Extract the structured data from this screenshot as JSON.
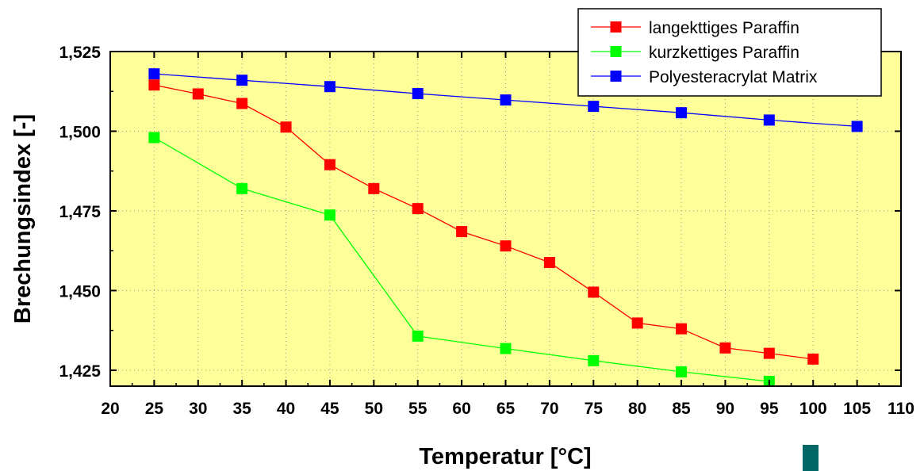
{
  "chart_data": {
    "type": "line",
    "xlabel": "Temperatur [°C]",
    "ylabel": "Brechungsindex [-]",
    "xlim": [
      20,
      110
    ],
    "ylim": [
      1.42,
      1.525
    ],
    "x_ticks": [
      20,
      25,
      30,
      35,
      40,
      45,
      50,
      55,
      60,
      65,
      70,
      75,
      80,
      85,
      90,
      95,
      100,
      105,
      110
    ],
    "x_tick_labels": [
      "20",
      "25",
      "30",
      "35",
      "40",
      "45",
      "50",
      "55",
      "60",
      "65",
      "70",
      "75",
      "80",
      "85",
      "90",
      "95",
      "100",
      "105",
      "110"
    ],
    "y_ticks": [
      1.425,
      1.45,
      1.475,
      1.5,
      1.525
    ],
    "y_tick_labels": [
      "1,425",
      "1,450",
      "1,475",
      "1,500",
      "1,525"
    ],
    "grid": true,
    "legend_position": "top-right",
    "background_color": "#ffff99",
    "series": [
      {
        "name": "langekttiges Paraffin",
        "color": "#ff0000",
        "x": [
          25,
          30,
          35,
          40,
          45,
          50,
          55,
          60,
          65,
          70,
          75,
          80,
          85,
          90,
          95,
          100
        ],
        "y": [
          1.5145,
          1.5117,
          1.5087,
          1.5013,
          1.4895,
          1.482,
          1.4757,
          1.4685,
          1.464,
          1.4588,
          1.4495,
          1.4398,
          1.438,
          1.432,
          1.4303,
          1.4285
        ]
      },
      {
        "name": "kurzkettiges Paraffin",
        "color": "#00ff00",
        "x": [
          25,
          35,
          45,
          55,
          65,
          75,
          85,
          95
        ],
        "y": [
          1.498,
          1.482,
          1.4737,
          1.4357,
          1.4318,
          1.428,
          1.4245,
          1.4215
        ]
      },
      {
        "name": "Polyesteracrylat Matrix",
        "color": "#0000ff",
        "x": [
          25,
          35,
          45,
          55,
          65,
          75,
          85,
          95,
          105
        ],
        "y": [
          1.518,
          1.516,
          1.514,
          1.5118,
          1.5098,
          1.5078,
          1.5058,
          1.5035,
          1.5015
        ]
      }
    ]
  }
}
